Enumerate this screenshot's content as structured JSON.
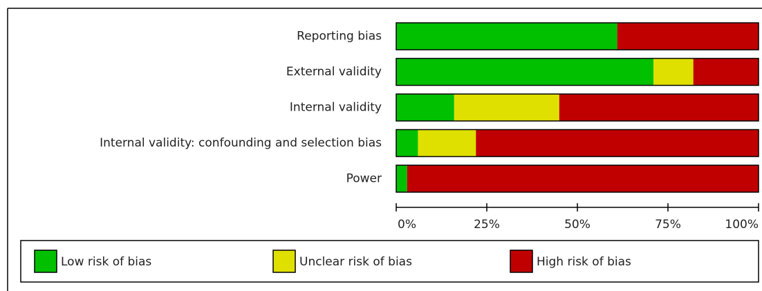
{
  "chart_data": {
    "type": "stacked_bar_horizontal",
    "categories": [
      "Reporting bias",
      "External validity",
      "Internal validity",
      "Internal validity: confounding and selection bias",
      "Power"
    ],
    "series": [
      {
        "name": "Low risk of bias",
        "color": "#00c000",
        "values": [
          61,
          71,
          16,
          6,
          3
        ]
      },
      {
        "name": "Unclear risk of bias",
        "color": "#e0e000",
        "values": [
          0,
          11,
          29,
          16,
          0
        ]
      },
      {
        "name": "High risk of bias",
        "color": "#c00000",
        "values": [
          39,
          18,
          55,
          78,
          97
        ]
      }
    ],
    "xlim": [
      0,
      100
    ],
    "xticks": [
      {
        "value": 0,
        "label": "0%"
      },
      {
        "value": 25,
        "label": "25%"
      },
      {
        "value": 50,
        "label": "50%"
      },
      {
        "value": 75,
        "label": "75%"
      },
      {
        "value": 100,
        "label": "100%"
      }
    ],
    "legend": "bottom"
  }
}
